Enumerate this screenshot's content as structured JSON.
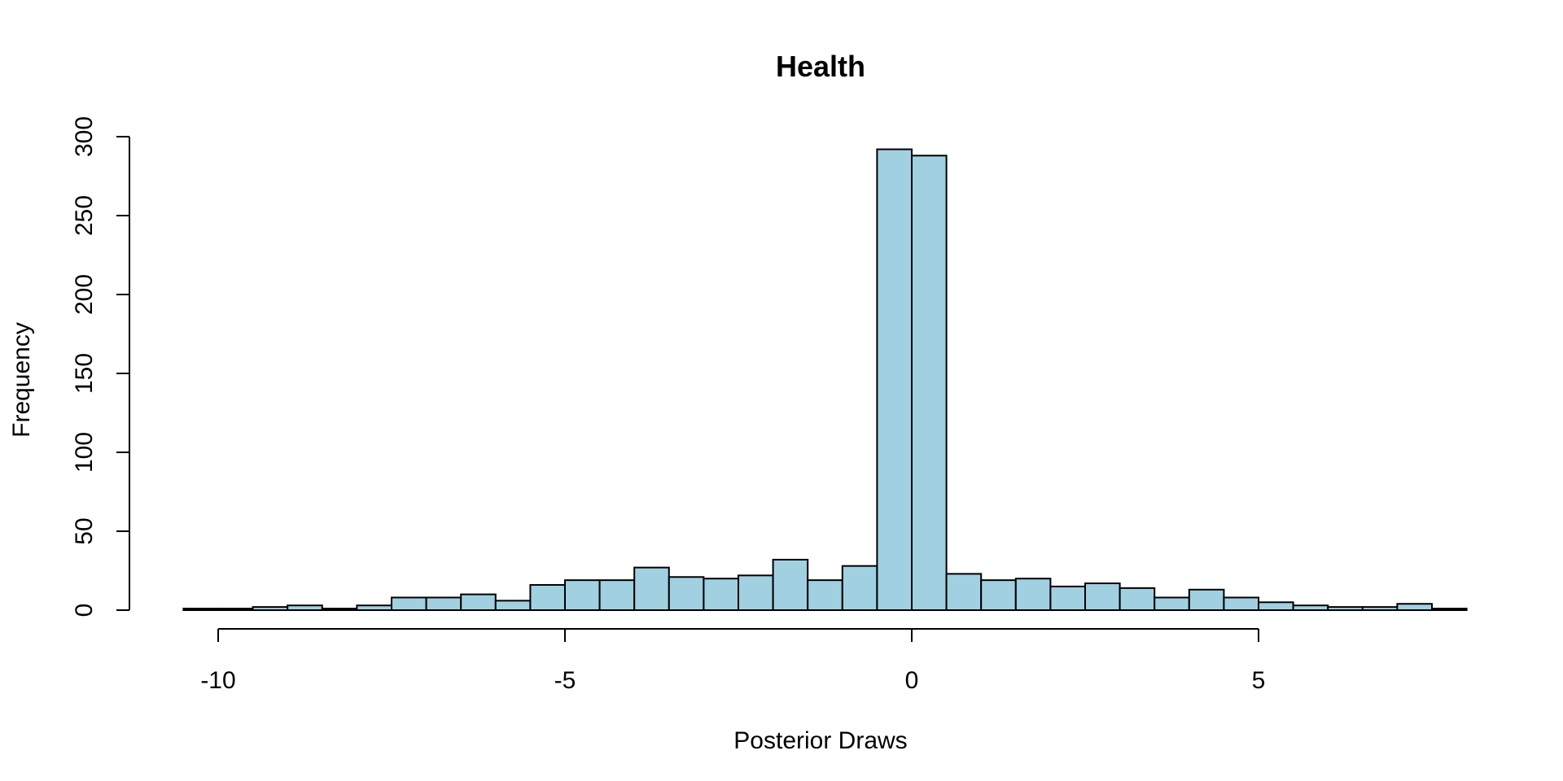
{
  "chart_data": {
    "type": "bar",
    "title": "Health",
    "xlabel": "Posterior Draws",
    "ylabel": "Frequency",
    "bin_width": 0.5,
    "bins": [
      {
        "x0": -10.5,
        "x1": -10.0,
        "count": 1
      },
      {
        "x0": -10.0,
        "x1": -9.5,
        "count": 1
      },
      {
        "x0": -9.5,
        "x1": -9.0,
        "count": 2
      },
      {
        "x0": -9.0,
        "x1": -8.5,
        "count": 3
      },
      {
        "x0": -8.5,
        "x1": -8.0,
        "count": 1
      },
      {
        "x0": -8.0,
        "x1": -7.5,
        "count": 3
      },
      {
        "x0": -7.5,
        "x1": -7.0,
        "count": 8
      },
      {
        "x0": -7.0,
        "x1": -6.5,
        "count": 8
      },
      {
        "x0": -6.5,
        "x1": -6.0,
        "count": 10
      },
      {
        "x0": -6.0,
        "x1": -5.5,
        "count": 6
      },
      {
        "x0": -5.5,
        "x1": -5.0,
        "count": 16
      },
      {
        "x0": -5.0,
        "x1": -4.5,
        "count": 19
      },
      {
        "x0": -4.5,
        "x1": -4.0,
        "count": 19
      },
      {
        "x0": -4.0,
        "x1": -3.5,
        "count": 27
      },
      {
        "x0": -3.5,
        "x1": -3.0,
        "count": 21
      },
      {
        "x0": -3.0,
        "x1": -2.5,
        "count": 20
      },
      {
        "x0": -2.5,
        "x1": -2.0,
        "count": 22
      },
      {
        "x0": -2.0,
        "x1": -1.5,
        "count": 32
      },
      {
        "x0": -1.5,
        "x1": -1.0,
        "count": 19
      },
      {
        "x0": -1.0,
        "x1": -0.5,
        "count": 28
      },
      {
        "x0": -0.5,
        "x1": 0.0,
        "count": 292
      },
      {
        "x0": 0.0,
        "x1": 0.5,
        "count": 288
      },
      {
        "x0": 0.5,
        "x1": 1.0,
        "count": 23
      },
      {
        "x0": 1.0,
        "x1": 1.5,
        "count": 19
      },
      {
        "x0": 1.5,
        "x1": 2.0,
        "count": 20
      },
      {
        "x0": 2.0,
        "x1": 2.5,
        "count": 15
      },
      {
        "x0": 2.5,
        "x1": 3.0,
        "count": 17
      },
      {
        "x0": 3.0,
        "x1": 3.5,
        "count": 14
      },
      {
        "x0": 3.5,
        "x1": 4.0,
        "count": 8
      },
      {
        "x0": 4.0,
        "x1": 4.5,
        "count": 13
      },
      {
        "x0": 4.5,
        "x1": 5.0,
        "count": 8
      },
      {
        "x0": 5.0,
        "x1": 5.5,
        "count": 5
      },
      {
        "x0": 5.5,
        "x1": 6.0,
        "count": 3
      },
      {
        "x0": 6.0,
        "x1": 6.5,
        "count": 2
      },
      {
        "x0": 6.5,
        "x1": 7.0,
        "count": 2
      },
      {
        "x0": 7.0,
        "x1": 7.5,
        "count": 4
      },
      {
        "x0": 7.5,
        "x1": 8.0,
        "count": 1
      }
    ],
    "xlim": [
      -10.5,
      8.0
    ],
    "ylim": [
      0,
      300
    ],
    "x_ticks": [
      -10,
      -5,
      0,
      5
    ],
    "x_tick_labels": [
      "-10",
      "-5",
      "0",
      "5"
    ],
    "y_ticks": [
      0,
      50,
      100,
      150,
      200,
      250,
      300
    ],
    "y_tick_labels": [
      "0",
      "50",
      "100",
      "150",
      "200",
      "250",
      "300"
    ],
    "grid": false,
    "bar_color": "#a1d0e1",
    "edge_color": "#000000"
  }
}
